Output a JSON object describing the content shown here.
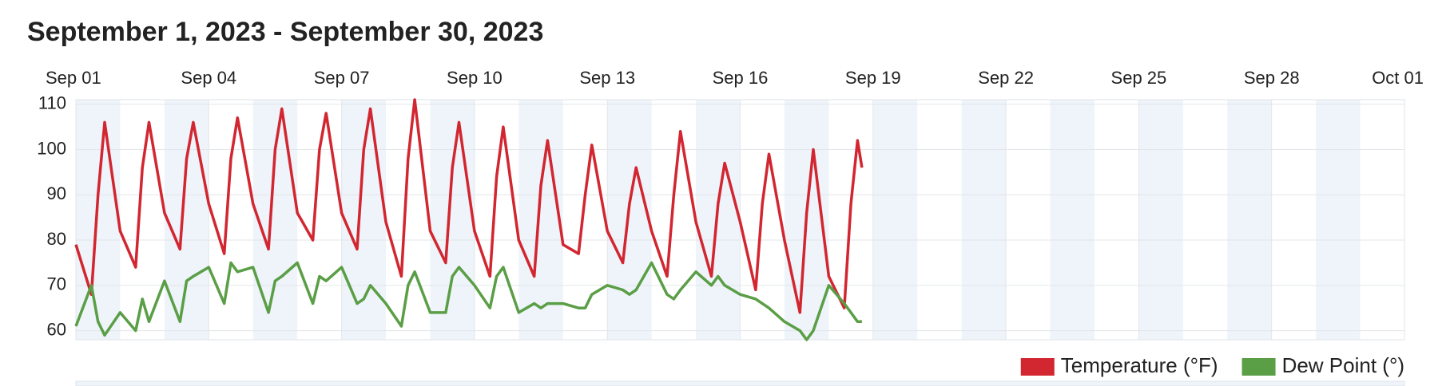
{
  "chart_data": {
    "type": "line",
    "title": "September 1, 2023 - September 30, 2023",
    "x": [
      0,
      0.35,
      0.5,
      0.65,
      1,
      1.35,
      1.5,
      1.65,
      2,
      2.35,
      2.5,
      2.65,
      3,
      3.35,
      3.5,
      3.65,
      4,
      4.35,
      4.5,
      4.65,
      5,
      5.35,
      5.5,
      5.65,
      6,
      6.35,
      6.5,
      6.65,
      7,
      7.35,
      7.5,
      7.65,
      8,
      8.35,
      8.5,
      8.65,
      9,
      9.35,
      9.5,
      9.65,
      10,
      10.35,
      10.5,
      10.65,
      11,
      11.35,
      11.5,
      11.65,
      12,
      12.35,
      12.5,
      12.65,
      13,
      13.35,
      13.5,
      13.65,
      14,
      14.35,
      14.5,
      14.65,
      15,
      15.35,
      15.5,
      15.65,
      16,
      16.35,
      16.5,
      16.65,
      17,
      17.35,
      17.5,
      17.65,
      17.75
    ],
    "series": [
      {
        "name": "Temperature (°F)",
        "color": "#d22630",
        "values": [
          79,
          68,
          90,
          106,
          82,
          74,
          96,
          106,
          86,
          78,
          98,
          106,
          88,
          77,
          98,
          107,
          88,
          78,
          100,
          109,
          86,
          80,
          100,
          108,
          86,
          78,
          100,
          109,
          84,
          72,
          98,
          111,
          82,
          75,
          96,
          106,
          82,
          72,
          94,
          105,
          80,
          72,
          92,
          102,
          79,
          77,
          90,
          101,
          82,
          75,
          88,
          96,
          82,
          72,
          90,
          104,
          84,
          72,
          88,
          97,
          84,
          69,
          88,
          99,
          80,
          64,
          86,
          100,
          72,
          65,
          88,
          102,
          96
        ]
      },
      {
        "name": "Dew Point (°)",
        "color": "#5a9e46",
        "values": [
          61,
          70,
          62,
          59,
          64,
          60,
          67,
          62,
          71,
          62,
          71,
          72,
          74,
          66,
          75,
          73,
          74,
          64,
          71,
          72,
          75,
          66,
          72,
          71,
          74,
          66,
          67,
          70,
          66,
          61,
          70,
          73,
          64,
          64,
          72,
          74,
          70,
          65,
          72,
          74,
          64,
          66,
          65,
          66,
          66,
          65,
          65,
          68,
          70,
          69,
          68,
          69,
          75,
          68,
          67,
          69,
          73,
          70,
          72,
          70,
          68,
          67,
          66,
          65,
          62,
          60,
          58,
          60,
          70,
          66,
          64,
          62,
          62
        ]
      }
    ],
    "xlim": [
      0,
      30
    ],
    "xticks": [
      {
        "value": 0,
        "label": "Sep 01"
      },
      {
        "value": 3,
        "label": "Sep 04"
      },
      {
        "value": 6,
        "label": "Sep 07"
      },
      {
        "value": 9,
        "label": "Sep 10"
      },
      {
        "value": 12,
        "label": "Sep 13"
      },
      {
        "value": 15,
        "label": "Sep 16"
      },
      {
        "value": 18,
        "label": "Sep 19"
      },
      {
        "value": 21,
        "label": "Sep 22"
      },
      {
        "value": 24,
        "label": "Sep 25"
      },
      {
        "value": 27,
        "label": "Sep 28"
      },
      {
        "value": 30,
        "label": "Oct 01"
      }
    ],
    "ylim": [
      58,
      111
    ],
    "yticks": [
      60,
      70,
      80,
      90,
      100,
      110
    ],
    "grid": true,
    "legend": "bottom-right"
  }
}
